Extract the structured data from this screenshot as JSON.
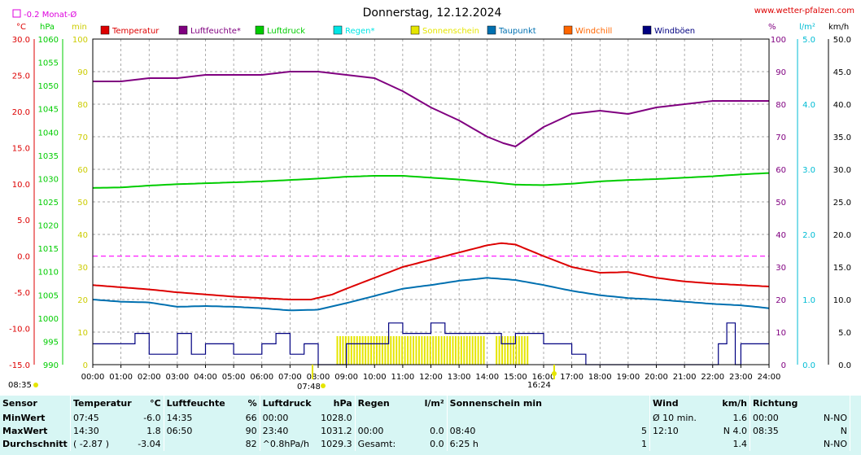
{
  "header": {
    "title": "Donnerstag, 12.12.2024",
    "site": "www.wetter-pfalzen.com",
    "month_diff": "-0.2 Monat-Ø",
    "sunrise": "08:35",
    "sunset_marker": "16:24",
    "sunrise_marker": "07:48"
  },
  "units": {
    "temp": "°C",
    "pressure": "hPa",
    "rain_min": "min",
    "humidity": "%",
    "rain": "l/m²",
    "wind": "km/h"
  },
  "legend": [
    {
      "label": "Temperatur",
      "color": "#dd0000"
    },
    {
      "label": "Luftfeuchte*",
      "color": "#800080"
    },
    {
      "label": "Luftdruck",
      "color": "#00cc00"
    },
    {
      "label": "Regen*",
      "color": "#00e5e5"
    },
    {
      "label": "Sonnenschein",
      "color": "#e5e500"
    },
    {
      "label": "Taupunkt",
      "color": "#0070b0"
    },
    {
      "label": "Windchill",
      "color": "#ff6600"
    },
    {
      "label": "Windböen",
      "color": "#000080"
    }
  ],
  "chart_data": {
    "type": "line",
    "x_ticks": [
      "00:00",
      "01:00",
      "02:00",
      "03:00",
      "04:00",
      "05:00",
      "06:00",
      "07:00",
      "08:00",
      "09:00",
      "10:00",
      "11:00",
      "12:00",
      "13:00",
      "14:00",
      "15:00",
      "16:00",
      "17:00",
      "18:00",
      "19:00",
      "20:00",
      "21:00",
      "22:00",
      "23:00",
      "24:00"
    ],
    "axes": {
      "temp": {
        "ticks": [
          "30.0",
          "25.0",
          "20.0",
          "15.0",
          "10.0",
          "5.0",
          "0.0",
          "-5.0",
          "-10.0",
          "-15.0"
        ],
        "range": [
          -15,
          30
        ]
      },
      "pressure": {
        "ticks": [
          "1060",
          "1055",
          "1050",
          "1045",
          "1040",
          "1035",
          "1030",
          "1025",
          "1020",
          "1015",
          "1010",
          "1005",
          "1000",
          "995",
          "990"
        ],
        "range": [
          990,
          1060
        ]
      },
      "rain_min": {
        "ticks": [
          "100",
          "90",
          "80",
          "70",
          "60",
          "50",
          "40",
          "30",
          "20",
          "10",
          "0"
        ],
        "range": [
          0,
          100
        ]
      },
      "humidity": {
        "ticks": [
          "100",
          "90",
          "80",
          "70",
          "60",
          "50",
          "40",
          "30",
          "20",
          "10",
          "0"
        ],
        "range": [
          0,
          100
        ]
      },
      "rain": {
        "ticks": [
          "5.0",
          "4.0",
          "3.0",
          "2.0",
          "1.0",
          "0.0"
        ],
        "range": [
          0,
          5
        ]
      },
      "wind": {
        "ticks": [
          "50.0",
          "45.0",
          "40.0",
          "35.0",
          "30.0",
          "25.0",
          "20.0",
          "15.0",
          "10.0",
          "5.0",
          "0.0"
        ],
        "range": [
          0,
          50
        ]
      }
    },
    "series": [
      {
        "name": "Temperatur",
        "axis": "temp",
        "x": [
          0,
          1,
          2,
          3,
          4,
          5,
          6,
          7,
          7.75,
          8.5,
          9,
          10,
          11,
          12,
          13,
          14,
          14.5,
          15,
          15.5,
          16,
          17,
          18,
          19,
          20,
          21,
          22,
          23,
          24
        ],
        "values": [
          -4.0,
          -4.3,
          -4.6,
          -5.0,
          -5.3,
          -5.6,
          -5.8,
          -6.0,
          -6.0,
          -5.3,
          -4.5,
          -3.0,
          -1.5,
          -0.5,
          0.5,
          1.5,
          1.8,
          1.6,
          0.8,
          0.0,
          -1.5,
          -2.3,
          -2.2,
          -3.0,
          -3.5,
          -3.8,
          -4.0,
          -4.2
        ]
      },
      {
        "name": "Luftfeuchte*",
        "axis": "humidity",
        "x": [
          0,
          1,
          2,
          3,
          4,
          5,
          6,
          7,
          8,
          9,
          10,
          11,
          12,
          13,
          14,
          14.58,
          15,
          16,
          17,
          18,
          19,
          20,
          21,
          22,
          23,
          24
        ],
        "values": [
          87,
          87,
          88,
          88,
          89,
          89,
          89,
          90,
          90,
          89,
          88,
          84,
          79,
          75,
          70,
          68,
          67,
          73,
          77,
          78,
          77,
          79,
          80,
          81,
          81,
          81
        ]
      },
      {
        "name": "Luftdruck",
        "axis": "pressure",
        "x": [
          0,
          1,
          2,
          3,
          4,
          5,
          6,
          7,
          8,
          9,
          10,
          11,
          12,
          13,
          14,
          15,
          16,
          17,
          18,
          19,
          20,
          21,
          22,
          23,
          24
        ],
        "values": [
          1028.0,
          1028.1,
          1028.5,
          1028.8,
          1029.0,
          1029.2,
          1029.4,
          1029.7,
          1030.0,
          1030.4,
          1030.6,
          1030.6,
          1030.2,
          1029.8,
          1029.3,
          1028.7,
          1028.6,
          1028.9,
          1029.4,
          1029.7,
          1029.9,
          1030.2,
          1030.5,
          1030.9,
          1031.2
        ]
      },
      {
        "name": "Taupunkt",
        "axis": "temp",
        "x": [
          0,
          1,
          2,
          3,
          4,
          5,
          6,
          7,
          8,
          9,
          10,
          11,
          12,
          13,
          14,
          15,
          16,
          17,
          18,
          19,
          20,
          21,
          22,
          23,
          24
        ],
        "values": [
          -6.0,
          -6.3,
          -6.4,
          -7.0,
          -6.9,
          -7.0,
          -7.2,
          -7.5,
          -7.4,
          -6.5,
          -5.5,
          -4.5,
          -4.0,
          -3.4,
          -3.0,
          -3.3,
          -4.0,
          -4.8,
          -5.4,
          -5.8,
          -6.0,
          -6.3,
          -6.6,
          -6.8,
          -7.2
        ]
      },
      {
        "name": "Windböen",
        "axis": "wind",
        "x": [
          0,
          1,
          1.5,
          2,
          3,
          3.5,
          4,
          5,
          6,
          6.5,
          7,
          7.5,
          8,
          8.5,
          9,
          10,
          10.5,
          11,
          12,
          12.5,
          13,
          14,
          14.5,
          15,
          15.5,
          16,
          16.5,
          17,
          17.5,
          22,
          22.2,
          22.5,
          22.8,
          23,
          24
        ],
        "values": [
          3.2,
          3.2,
          4.8,
          1.6,
          4.8,
          1.6,
          3.2,
          1.6,
          3.2,
          4.8,
          1.6,
          3.2,
          0,
          0,
          3.2,
          3.2,
          6.4,
          4.8,
          6.4,
          4.8,
          4.8,
          4.8,
          3.2,
          4.8,
          4.8,
          3.2,
          3.2,
          1.6,
          0,
          0,
          3.2,
          6.4,
          0,
          3.2,
          3.2
        ]
      },
      {
        "name": "Sonnenschein",
        "axis": "rain_min",
        "spans": [
          [
            8.65,
            13.9
          ],
          [
            14.3,
            15.4
          ]
        ],
        "value": 5
      }
    ],
    "reference_lines": [
      {
        "axis": "temp",
        "value": 0.0,
        "color": "#ff00ff"
      }
    ]
  },
  "stats": {
    "headers": {
      "sensor": "Sensor",
      "temp": "Temperatur",
      "temp_unit": "°C",
      "hum": "Luftfeuchte",
      "hum_unit": "%",
      "press": "Luftdruck",
      "press_unit": "hPa",
      "rain": "Regen",
      "rain_unit": "l/m²",
      "sun": "Sonnenschein min",
      "wind": "Wind",
      "wind_unit": "km/h",
      "dir": "Richtung"
    },
    "rows": [
      {
        "label": "MinWert",
        "temp_time": "07:45",
        "temp": "-6.0",
        "hum_time": "14:35",
        "hum": "66",
        "press_time": "00:00",
        "press": "1028.0",
        "rain_time": "",
        "rain": "",
        "sun_time": "",
        "sun": "",
        "wind_time": "Ø 10 min.",
        "wind": "1.6",
        "dir_time": "00:00",
        "dir": "N-NO"
      },
      {
        "label": "MaxWert",
        "temp_time": "14:30",
        "temp": "1.8",
        "hum_time": "06:50",
        "hum": "90",
        "press_time": "23:40",
        "press": "1031.2",
        "rain_time": "00:00",
        "rain": "0.0",
        "sun_time": "08:40",
        "sun": "5",
        "wind_time": "12:10",
        "wind": "N 4.0",
        "dir_time": "08:35",
        "dir": "N"
      },
      {
        "label": "Durchschnitt",
        "temp_time": "( -2.87 )",
        "temp": "-3.04",
        "hum_time": "",
        "hum": "82",
        "press_time": "^0.8hPa/h",
        "press": "1029.3",
        "rain_time": "Gesamt:",
        "rain": "0.0",
        "sun_time": "6:25 h",
        "sun": "1",
        "wind_time": "",
        "wind": "1.4",
        "dir_time": "",
        "dir": "N-NO"
      }
    ]
  }
}
